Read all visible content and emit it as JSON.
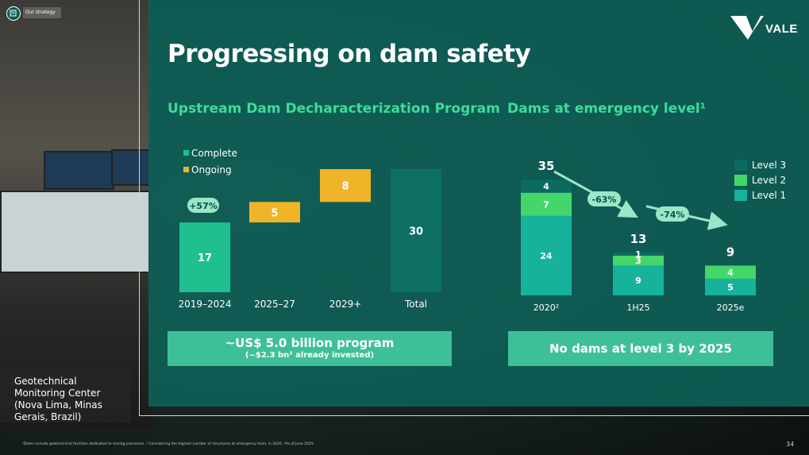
{
  "header": {
    "tag": "Our strategy",
    "logo_text": "VALE"
  },
  "title": "Progressing on dam safety",
  "left_section": {
    "title": "Upstream Dam Decharacterization Program",
    "legend": [
      "Complete",
      "Ongoing"
    ],
    "change_badge": "+57%",
    "box": {
      "main": "~US$ 5.0 billion program",
      "sub": "(~$2.3 bn² already invested)"
    }
  },
  "right_section": {
    "title": "Dams at emergency level¹",
    "legend": [
      "Level 3",
      "Level 2",
      "Level 1"
    ],
    "badges": [
      "-63%",
      "-74%"
    ],
    "box": {
      "main": "No dams at level 3 by 2025"
    }
  },
  "caption": "Geotechnical Monitoring Center (Nova Lima, Minas Gerais, Brazil)",
  "footnote": "¹Dams include geotechnical facilities dedicated to mining processes. ² Considering the highest number of structures at emergency level, in 2020. ³As of June 2025.",
  "page_number": "34",
  "colors": {
    "complete": "#1fbf8f",
    "ongoing": "#f0b429",
    "total": "#0d6e62",
    "level3": "#0c6a60",
    "level2": "#45d66a",
    "level1": "#16b29c",
    "accent": "#3ddc9a"
  },
  "chart_data": [
    {
      "type": "bar",
      "title": "Upstream Dam Decharacterization Program",
      "categories": [
        "2019–2024",
        "2025–27",
        "2029+",
        "Total"
      ],
      "series": [
        {
          "name": "Complete",
          "values": [
            17,
            null,
            null,
            null
          ]
        },
        {
          "name": "Ongoing",
          "values": [
            null,
            5,
            8,
            null
          ]
        },
        {
          "name": "Total",
          "values": [
            null,
            null,
            null,
            30
          ]
        }
      ],
      "waterfall": true,
      "ylim": [
        0,
        30
      ],
      "legend": "top-left"
    },
    {
      "type": "bar",
      "stacked": true,
      "title": "Dams at emergency level¹",
      "categories": [
        "2020²",
        "1H25",
        "2025e"
      ],
      "series": [
        {
          "name": "Level 1",
          "values": [
            24,
            9,
            5
          ]
        },
        {
          "name": "Level 2",
          "values": [
            7,
            3,
            4
          ]
        },
        {
          "name": "Level 3",
          "values": [
            4,
            1,
            0
          ]
        }
      ],
      "totals": [
        35,
        13,
        9
      ],
      "ylim": [
        0,
        35
      ],
      "legend": "top-right"
    }
  ]
}
